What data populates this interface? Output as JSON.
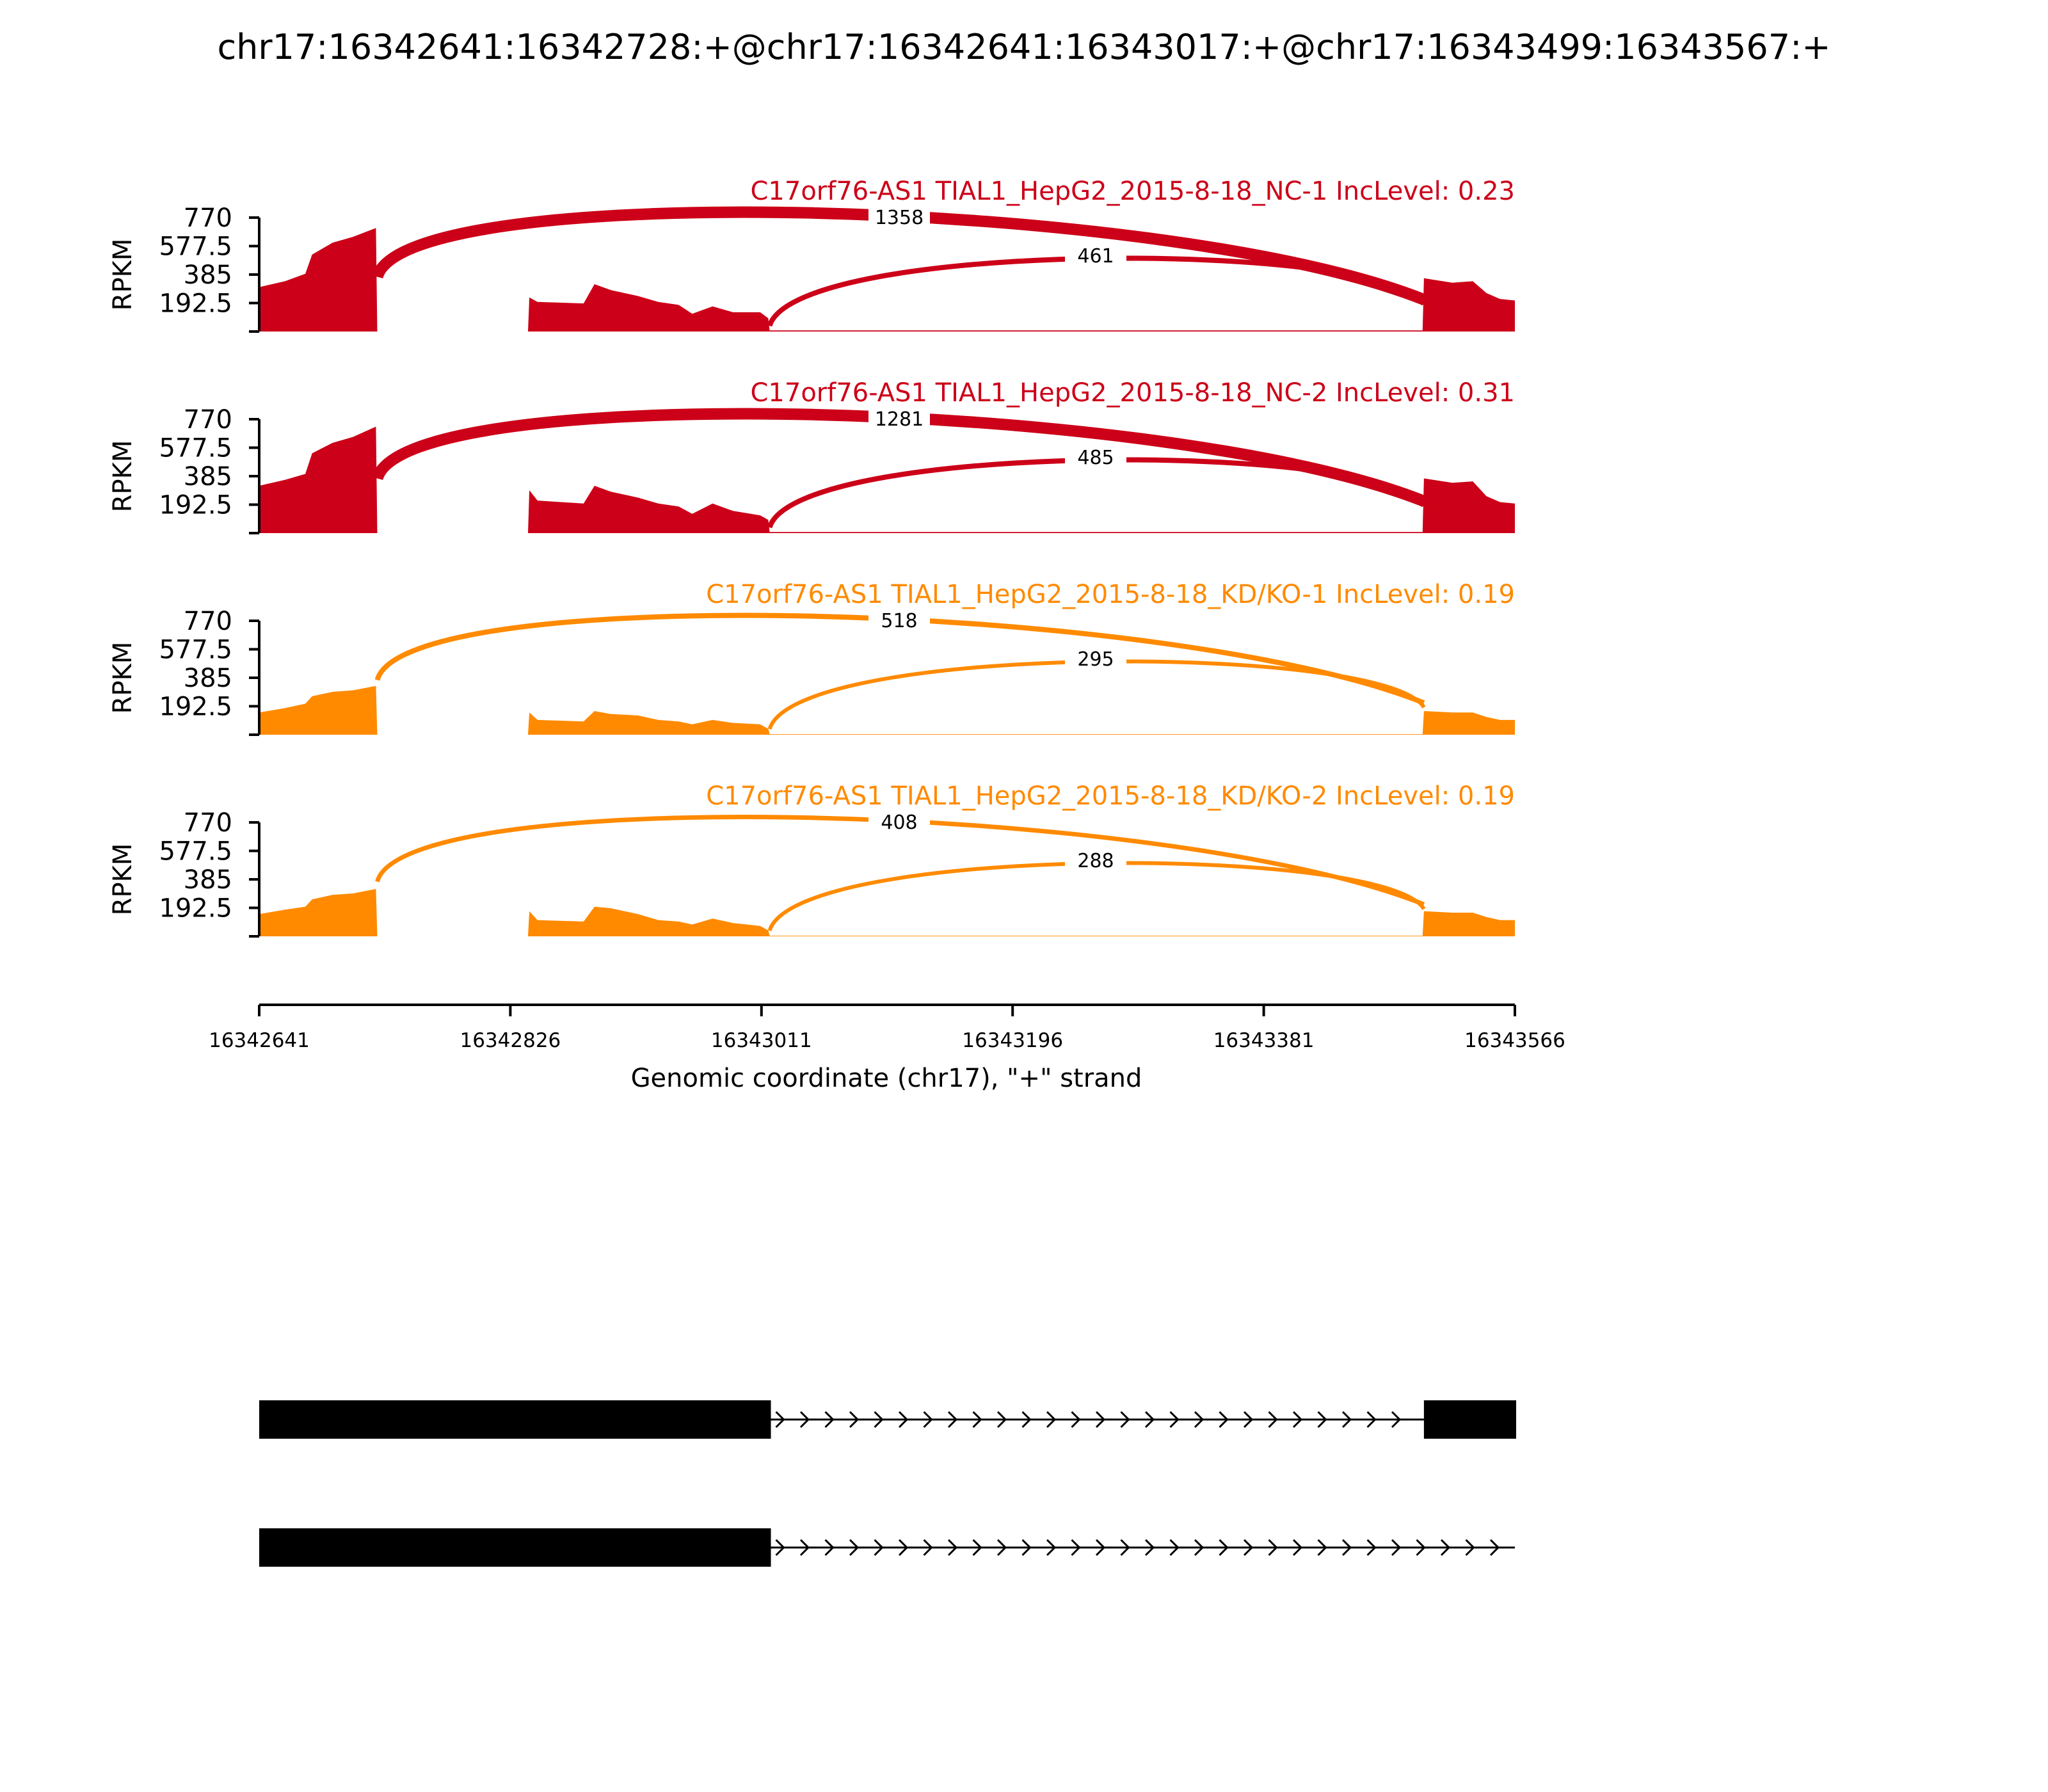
{
  "figure_title": "chr17:16342641:16342728:+@chr17:16342641:16343017:+@chr17:16343499:16343567:+",
  "colors": {
    "nc": "#cc0018",
    "kd": "#ff8a00",
    "axis": "#000000",
    "gene": "#000000"
  },
  "chart_data": {
    "type": "area",
    "xlabel": "Genomic coordinate (chr17), \"+\" strand",
    "x_range": [
      16342641,
      16343566
    ],
    "x_ticks": [
      "16342641",
      "16342826",
      "16343011",
      "16343196",
      "16343381",
      "16343566"
    ],
    "ylabel": "RPKM",
    "y_range": [
      0,
      770
    ],
    "y_ticks": [
      "770",
      "577.5",
      "385",
      "192.5"
    ],
    "panels": [
      {
        "label": "C17orf76-AS1 TIAL1_HepG2_2015-8-18_NC-1 IncLevel: 0.23",
        "color_key": "nc",
        "coverage": [
          [
            16342641,
            300
          ],
          [
            16342660,
            340
          ],
          [
            16342675,
            390
          ],
          [
            16342680,
            520
          ],
          [
            16342695,
            600
          ],
          [
            16342710,
            640
          ],
          [
            16342727,
            700
          ],
          [
            16342728,
            0
          ],
          [
            16342839,
            0
          ],
          [
            16342840,
            230
          ],
          [
            16342846,
            200
          ],
          [
            16342880,
            190
          ],
          [
            16342888,
            320
          ],
          [
            16342900,
            280
          ],
          [
            16342920,
            240
          ],
          [
            16342935,
            200
          ],
          [
            16342950,
            180
          ],
          [
            16342960,
            120
          ],
          [
            16342975,
            170
          ],
          [
            16342990,
            130
          ],
          [
            16343010,
            130
          ],
          [
            16343016,
            90
          ],
          [
            16343017,
            8
          ],
          [
            16343498,
            8
          ],
          [
            16343499,
            360
          ],
          [
            16343520,
            330
          ],
          [
            16343535,
            340
          ],
          [
            16343545,
            260
          ],
          [
            16343555,
            220
          ],
          [
            16343566,
            210
          ]
        ],
        "junctions": [
          {
            "from": 16342728,
            "to": 16343499,
            "count": "1358",
            "width": 18
          },
          {
            "from": 16343017,
            "to": 16343499,
            "count": "461",
            "width": 8
          }
        ]
      },
      {
        "label": "C17orf76-AS1 TIAL1_HepG2_2015-8-18_NC-2 IncLevel: 0.31",
        "color_key": "nc",
        "coverage": [
          [
            16342641,
            320
          ],
          [
            16342660,
            360
          ],
          [
            16342675,
            400
          ],
          [
            16342680,
            540
          ],
          [
            16342695,
            610
          ],
          [
            16342710,
            650
          ],
          [
            16342727,
            720
          ],
          [
            16342728,
            0
          ],
          [
            16342839,
            0
          ],
          [
            16342840,
            290
          ],
          [
            16342846,
            220
          ],
          [
            16342880,
            200
          ],
          [
            16342888,
            320
          ],
          [
            16342900,
            280
          ],
          [
            16342920,
            240
          ],
          [
            16342935,
            200
          ],
          [
            16342950,
            180
          ],
          [
            16342960,
            130
          ],
          [
            16342975,
            200
          ],
          [
            16342990,
            150
          ],
          [
            16343010,
            120
          ],
          [
            16343016,
            90
          ],
          [
            16343017,
            8
          ],
          [
            16343498,
            8
          ],
          [
            16343499,
            370
          ],
          [
            16343520,
            340
          ],
          [
            16343535,
            350
          ],
          [
            16343545,
            250
          ],
          [
            16343555,
            210
          ],
          [
            16343566,
            200
          ]
        ],
        "junctions": [
          {
            "from": 16342728,
            "to": 16343499,
            "count": "1281",
            "width": 18
          },
          {
            "from": 16343017,
            "to": 16343499,
            "count": "485",
            "width": 8
          }
        ]
      },
      {
        "label": "C17orf76-AS1 TIAL1_HepG2_2015-8-18_KD/KO-1 IncLevel: 0.19",
        "color_key": "kd",
        "coverage": [
          [
            16342641,
            150
          ],
          [
            16342660,
            180
          ],
          [
            16342675,
            210
          ],
          [
            16342680,
            260
          ],
          [
            16342695,
            290
          ],
          [
            16342710,
            300
          ],
          [
            16342727,
            330
          ],
          [
            16342728,
            0
          ],
          [
            16342839,
            0
          ],
          [
            16342840,
            150
          ],
          [
            16342846,
            100
          ],
          [
            16342880,
            90
          ],
          [
            16342888,
            160
          ],
          [
            16342900,
            140
          ],
          [
            16342920,
            130
          ],
          [
            16342935,
            100
          ],
          [
            16342950,
            90
          ],
          [
            16342960,
            70
          ],
          [
            16342975,
            100
          ],
          [
            16342990,
            80
          ],
          [
            16343010,
            70
          ],
          [
            16343016,
            40
          ],
          [
            16343017,
            4
          ],
          [
            16343498,
            4
          ],
          [
            16343499,
            160
          ],
          [
            16343520,
            150
          ],
          [
            16343535,
            150
          ],
          [
            16343545,
            120
          ],
          [
            16343555,
            100
          ],
          [
            16343566,
            100
          ]
        ],
        "junctions": [
          {
            "from": 16342728,
            "to": 16343499,
            "count": "518",
            "width": 8
          },
          {
            "from": 16343017,
            "to": 16343499,
            "count": "295",
            "width": 6
          }
        ]
      },
      {
        "label": "C17orf76-AS1 TIAL1_HepG2_2015-8-18_KD/KO-2 IncLevel: 0.19",
        "color_key": "kd",
        "coverage": [
          [
            16342641,
            150
          ],
          [
            16342660,
            180
          ],
          [
            16342675,
            200
          ],
          [
            16342680,
            250
          ],
          [
            16342695,
            280
          ],
          [
            16342710,
            290
          ],
          [
            16342727,
            320
          ],
          [
            16342728,
            0
          ],
          [
            16342839,
            0
          ],
          [
            16342840,
            170
          ],
          [
            16342846,
            110
          ],
          [
            16342880,
            100
          ],
          [
            16342888,
            200
          ],
          [
            16342900,
            190
          ],
          [
            16342920,
            150
          ],
          [
            16342935,
            110
          ],
          [
            16342950,
            100
          ],
          [
            16342960,
            80
          ],
          [
            16342975,
            120
          ],
          [
            16342990,
            90
          ],
          [
            16343010,
            70
          ],
          [
            16343016,
            40
          ],
          [
            16343017,
            4
          ],
          [
            16343498,
            4
          ],
          [
            16343499,
            170
          ],
          [
            16343520,
            160
          ],
          [
            16343535,
            160
          ],
          [
            16343545,
            130
          ],
          [
            16343555,
            110
          ],
          [
            16343566,
            110
          ]
        ],
        "junctions": [
          {
            "from": 16342728,
            "to": 16343499,
            "count": "408",
            "width": 7
          },
          {
            "from": 16343017,
            "to": 16343499,
            "count": "288",
            "width": 6
          }
        ]
      }
    ],
    "transcripts": [
      {
        "exons": [
          [
            16342641,
            16343017
          ],
          [
            16343499,
            16343566
          ]
        ]
      },
      {
        "exons": [
          [
            16342641,
            16343017
          ]
        ],
        "intron_to": 16343566
      }
    ]
  }
}
